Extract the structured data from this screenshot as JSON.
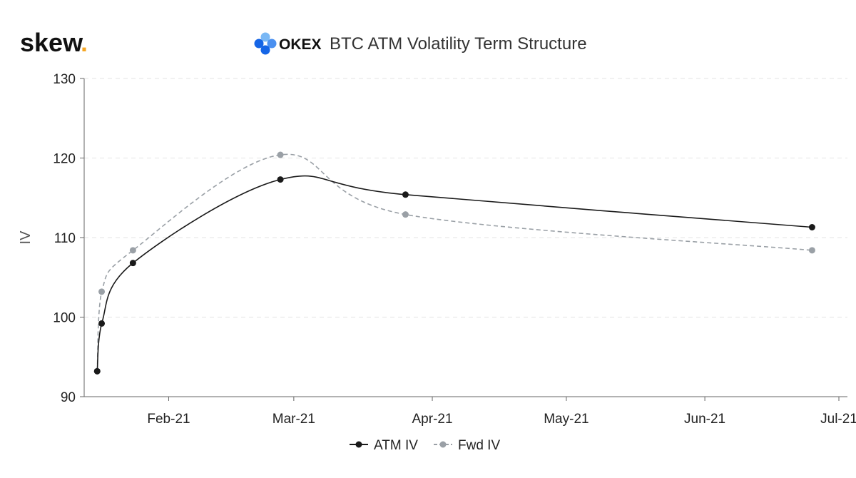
{
  "brand": {
    "logo_text": "skew",
    "logo_dot": ".",
    "dot_color": "#f5a623"
  },
  "exchange": {
    "name": "OKEX",
    "logo_color_primary": "#1565e6",
    "logo_color_secondary": "#4a90f0",
    "logo_color_light": "#7ab8f5"
  },
  "chart_data": {
    "type": "line",
    "title": "BTC ATM Volatility Term Structure",
    "ylabel": "IV",
    "xlabel": "",
    "ylim": [
      90,
      130
    ],
    "y_ticks": [
      90,
      100,
      110,
      120,
      130
    ],
    "x_ticks": [
      "Feb-21",
      "Mar-21",
      "Apr-21",
      "May-21",
      "Jun-21",
      "Jul-21"
    ],
    "x_tick_dates": [
      "2021-02-01",
      "2021-03-01",
      "2021-04-01",
      "2021-05-01",
      "2021-06-01",
      "2021-07-01"
    ],
    "xlim": [
      "2021-01-15",
      "2021-07-01"
    ],
    "grid": "horizontal dashed",
    "legend_position": "bottom-center",
    "series": [
      {
        "name": "ATM IV",
        "style": "solid",
        "color": "#1a1a1a",
        "points": [
          {
            "x": "2021-01-16",
            "y": 93.2
          },
          {
            "x": "2021-01-17",
            "y": 99.2
          },
          {
            "x": "2021-01-24",
            "y": 106.8
          },
          {
            "x": "2021-02-26",
            "y": 117.3
          },
          {
            "x": "2021-03-26",
            "y": 115.4
          },
          {
            "x": "2021-06-25",
            "y": 111.3
          }
        ]
      },
      {
        "name": "Fwd IV",
        "style": "dashed",
        "color": "#9aa0a6",
        "points": [
          {
            "x": "2021-01-16",
            "y": 93.2
          },
          {
            "x": "2021-01-17",
            "y": 103.2
          },
          {
            "x": "2021-01-24",
            "y": 108.4
          },
          {
            "x": "2021-02-26",
            "y": 120.4
          },
          {
            "x": "2021-03-26",
            "y": 112.9
          },
          {
            "x": "2021-06-25",
            "y": 108.4
          }
        ]
      }
    ]
  }
}
